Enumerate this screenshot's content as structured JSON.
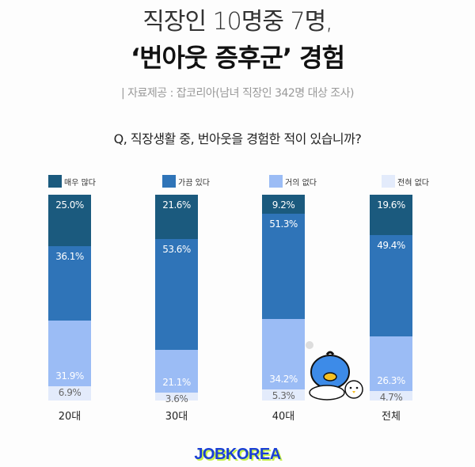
{
  "header": {
    "title_line1": "직장인 10명중 7명,",
    "title_line2": "‘번아웃 증후군’ 경험",
    "source": "| 자료제공 : 잡코리아(남녀 직장인 342명 대상 조사)",
    "question": "Q, 직장생활 중, 번아웃을 경험한 적이 있습니까?"
  },
  "colors": {
    "very_often": "#1b5a7e",
    "sometimes": "#2f74b8",
    "rarely": "#9bbcf5",
    "never": "#e3ebfb"
  },
  "legend": [
    {
      "label": "매우 많다",
      "color": "#1b5a7e"
    },
    {
      "label": "가끔 있다",
      "color": "#2f74b8"
    },
    {
      "label": "거의 없다",
      "color": "#9bbcf5"
    },
    {
      "label": "전혀 없다",
      "color": "#e3ebfb"
    }
  ],
  "chart_data": {
    "type": "bar",
    "stacked": true,
    "title": "Q, 직장생활 중, 번아웃을 경험한 적이 있습니까?",
    "categories": [
      "20대",
      "30대",
      "40대",
      "전체"
    ],
    "series": [
      {
        "name": "매우 많다",
        "values": [
          25.0,
          21.6,
          9.2,
          19.6
        ]
      },
      {
        "name": "가끔 있다",
        "values": [
          36.1,
          53.6,
          51.3,
          49.4
        ]
      },
      {
        "name": "거의 없다",
        "values": [
          31.9,
          21.1,
          34.2,
          26.3
        ]
      },
      {
        "name": "전혀 없다",
        "values": [
          6.9,
          3.6,
          5.3,
          4.7
        ]
      }
    ],
    "labels": [
      [
        "25.0%",
        "36.1%",
        "31.9%",
        "6.9%"
      ],
      [
        "21.6%",
        "53.6%",
        "21.1%",
        "3.6%"
      ],
      [
        "9.2%",
        "51.3%",
        "34.2%",
        "5.3%"
      ],
      [
        "19.6%",
        "49.4%",
        "26.3%",
        "4.7%"
      ]
    ],
    "ylim": [
      0,
      100
    ],
    "legend_position": "top",
    "grid": false
  },
  "footer": {
    "logo": "JOBKOREA"
  }
}
